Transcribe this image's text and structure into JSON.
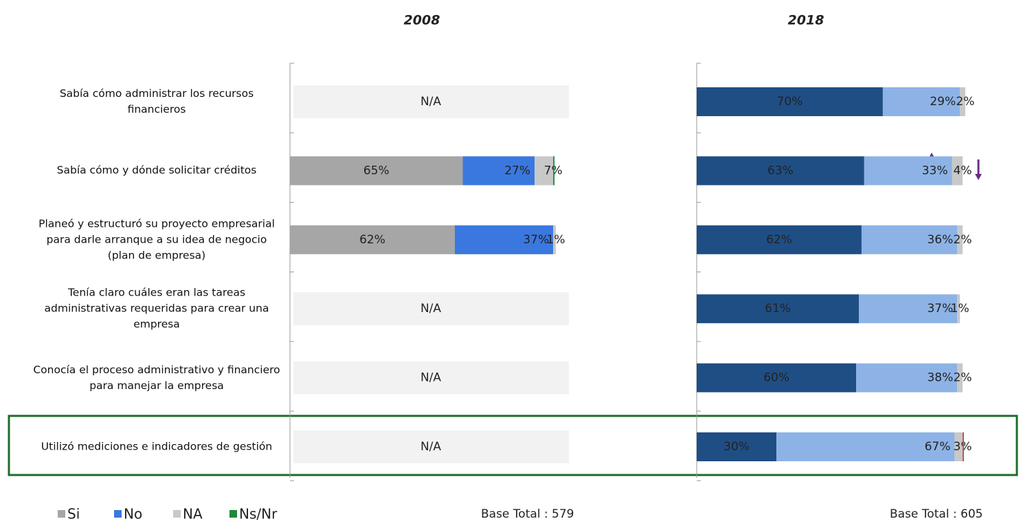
{
  "chart_data": [
    {
      "type": "stacked-barh",
      "title": "2008",
      "categories": [
        "Sabía cómo administrar los recursos financieros",
        "Sabía cómo y dónde solicitar créditos",
        "Planeó y estructuró su proyecto empresarial para darle arranque a su idea de negocio (plan de empresa)",
        "Tenía claro cuáles eran las tareas administrativas requeridas para crear una empresa",
        "Conocía el proceso administrativo y financiero para manejar la empresa",
        "Utilizó mediciones e indicadores de gestión"
      ],
      "missing_label": "N/A",
      "xlim": [
        0,
        100
      ],
      "series": [
        {
          "name": "Si",
          "color": "#a6a6a6",
          "values": [
            null,
            65,
            62,
            null,
            null,
            null
          ],
          "value_labels": [
            null,
            "65%",
            "62%",
            null,
            null,
            null
          ]
        },
        {
          "name": "No",
          "color": "#3a78e0",
          "values": [
            null,
            27,
            37,
            null,
            null,
            null
          ],
          "value_labels": [
            null,
            "27%",
            "37%",
            null,
            null,
            null
          ]
        },
        {
          "name": "NA",
          "color": "#c8c8c8",
          "values": [
            null,
            7,
            1,
            null,
            null,
            null
          ],
          "value_labels": [
            null,
            "7%",
            "1%",
            null,
            null,
            null
          ]
        },
        {
          "name": "Ns/Nr",
          "color": "#1a8a3a",
          "values": [
            null,
            0.5,
            null,
            null,
            null,
            null
          ]
        }
      ],
      "base_label": "Base Total : 579"
    },
    {
      "type": "stacked-barh",
      "title": "2018",
      "xlim": [
        0,
        100
      ],
      "series": [
        {
          "color": "#1f4e84",
          "values": [
            70,
            63,
            62,
            61,
            60,
            30
          ],
          "value_labels": [
            "70%",
            "63%",
            "62%",
            "61%",
            "60%",
            "30%"
          ]
        },
        {
          "color": "#8db3e6",
          "values": [
            29,
            33,
            36,
            37,
            38,
            67
          ],
          "value_labels": [
            "29%",
            "33%",
            "36%",
            "37%",
            "38%",
            "67%"
          ]
        },
        {
          "color": "#c8c8c8",
          "values": [
            2,
            4,
            2,
            1,
            2,
            3
          ],
          "value_labels": [
            "2%",
            "4%",
            "2%",
            "1%",
            "2%",
            "3%"
          ]
        },
        {
          "color": "#c0504d",
          "values": [
            null,
            null,
            null,
            null,
            null,
            0.5
          ]
        }
      ],
      "base_label": "Base Total : 605"
    }
  ]
}
